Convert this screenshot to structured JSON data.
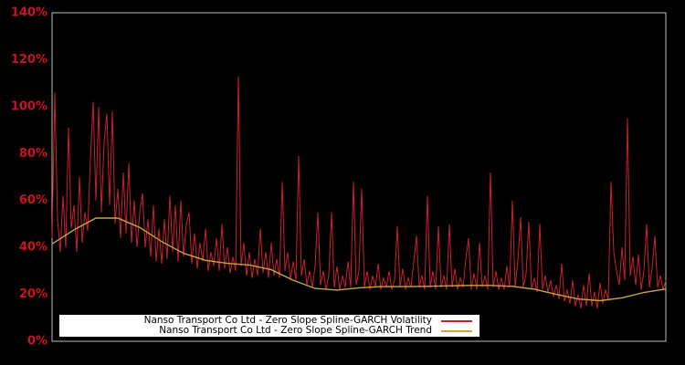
{
  "window": {
    "background": "#000000"
  },
  "chart_data": {
    "type": "line",
    "title": "",
    "xlabel": "",
    "ylabel": "",
    "x_axis": {
      "tick_labels_visible": false
    },
    "y_axis": {
      "min": 0,
      "max": 140,
      "ticks": [
        0,
        20,
        40,
        60,
        80,
        100,
        120,
        140
      ],
      "tick_suffix": "%",
      "tick_color": "#cc1122"
    },
    "grid": "off",
    "plot_border_color": "#bdbdbd",
    "legend": {
      "position": "lower-left",
      "background": "#ffffff",
      "text_color": "#000000"
    },
    "series": [
      {
        "name": "Nanso Transport Co Ltd - Zero Slope Spline-GARCH Volatility",
        "color": "#cc1f2c",
        "stroke_width": 1,
        "unit": "percent",
        "values": [
          44,
          106,
          52,
          38,
          62,
          40,
          91,
          48,
          58,
          38,
          70,
          42,
          55,
          47,
          78,
          102,
          60,
          100,
          55,
          85,
          97,
          58,
          98,
          50,
          65,
          44,
          72,
          46,
          76,
          42,
          60,
          40,
          55,
          63,
          40,
          52,
          36,
          58,
          34,
          48,
          33,
          52,
          35,
          62,
          38,
          58,
          34,
          60,
          36,
          50,
          55,
          33,
          46,
          31,
          42,
          34,
          48,
          30,
          38,
          32,
          44,
          30,
          50,
          31,
          40,
          29,
          36,
          30,
          113,
          32,
          42,
          28,
          38,
          27,
          35,
          28,
          48,
          29,
          38,
          27,
          42,
          28,
          35,
          27,
          68,
          30,
          38,
          26,
          34,
          26,
          79,
          28,
          35,
          24,
          30,
          23,
          32,
          55,
          24,
          30,
          22,
          28,
          55,
          23,
          32,
          22,
          28,
          23,
          34,
          23,
          68,
          24,
          30,
          65,
          23,
          30,
          22,
          28,
          23,
          33,
          22,
          27,
          23,
          30,
          22,
          26,
          49,
          23,
          31,
          22,
          27,
          23,
          34,
          45,
          23,
          28,
          22,
          62,
          23,
          30,
          22,
          49,
          23,
          28,
          22,
          50,
          23,
          31,
          22,
          27,
          23,
          35,
          44,
          22,
          29,
          22,
          42,
          23,
          28,
          22,
          72,
          23,
          30,
          22,
          27,
          22,
          32,
          23,
          60,
          23,
          34,
          53,
          23,
          29,
          51,
          22,
          27,
          21,
          50,
          22,
          28,
          21,
          26,
          19,
          24,
          18,
          33,
          17,
          22,
          16,
          26,
          15,
          20,
          14,
          24,
          15,
          29,
          15,
          21,
          14,
          25,
          16,
          22,
          18,
          68,
          38,
          30,
          24,
          40,
          26,
          95,
          28,
          36,
          24,
          37,
          22,
          30,
          50,
          23,
          31,
          45,
          23,
          28,
          22,
          26
        ]
      },
      {
        "name": "Nanso Transport Co Ltd - Zero Slope Spline-GARCH Trend",
        "color": "#c9a53a",
        "stroke_width": 1.4,
        "unit": "percent",
        "values": [
          41.5,
          47.5,
          52.5,
          52.5,
          48.5,
          42.5,
          37.5,
          34.5,
          33.2,
          32.5,
          30.5,
          26,
          22.5,
          21.8,
          22.8,
          23.3,
          23.3,
          23.4,
          23.6,
          23.8,
          23.8,
          23.4,
          22.2,
          20,
          18,
          17.3,
          18.5,
          20.8,
          22.3
        ]
      }
    ]
  }
}
